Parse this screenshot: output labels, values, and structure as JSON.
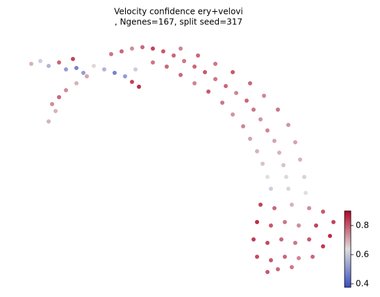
{
  "chart_data": {
    "type": "scatter",
    "title": [
      "Velocity confidence ery+velovi",
      ", Ngenes=167, split seed=317"
    ],
    "xlim": [
      0,
      547
    ],
    "ylim": [
      -18,
      410
    ],
    "x": [
      45,
      58,
      70,
      85,
      95,
      110,
      120,
      135,
      150,
      165,
      180,
      195,
      200,
      190,
      105,
      75,
      85,
      95,
      80,
      70,
      110,
      125,
      160,
      175,
      190,
      205,
      220,
      235,
      250,
      265,
      280,
      295,
      310,
      325,
      340,
      355,
      365,
      375,
      385,
      395,
      402,
      408,
      412,
      415,
      220,
      240,
      260,
      280,
      300,
      320,
      335,
      350,
      360,
      370,
      378,
      385,
      390,
      260,
      285,
      310,
      335,
      360,
      380,
      400,
      415,
      425,
      432,
      438,
      440,
      375,
      395,
      420,
      445,
      465,
      480,
      370,
      390,
      410,
      430,
      455,
      475,
      365,
      385,
      405,
      425,
      445,
      465,
      370,
      390,
      410,
      430,
      450,
      385,
      400,
      420
    ],
    "y": [
      318,
      322,
      315,
      320,
      310,
      312,
      305,
      315,
      310,
      305,
      300,
      310,
      285,
      292,
      325,
      260,
      270,
      280,
      250,
      235,
      290,
      300,
      332,
      336,
      340,
      342,
      340,
      336,
      330,
      322,
      314,
      306,
      296,
      286,
      276,
      265,
      252,
      238,
      222,
      207,
      190,
      172,
      155,
      138,
      320,
      314,
      302,
      290,
      278,
      262,
      245,
      228,
      210,
      192,
      174,
      155,
      138,
      340,
      330,
      318,
      306,
      290,
      272,
      252,
      230,
      205,
      180,
      155,
      132,
      115,
      110,
      115,
      110,
      105,
      90,
      90,
      85,
      90,
      85,
      85,
      70,
      65,
      60,
      65,
      60,
      65,
      55,
      40,
      35,
      40,
      38,
      40,
      18,
      22,
      25
    ],
    "values": [
      0.7,
      0.6,
      0.55,
      0.8,
      0.5,
      0.45,
      0.5,
      0.65,
      0.55,
      0.45,
      0.5,
      0.6,
      0.88,
      0.85,
      0.85,
      0.75,
      0.8,
      0.75,
      0.7,
      0.7,
      0.7,
      0.72,
      0.78,
      0.8,
      0.75,
      0.8,
      0.85,
      0.82,
      0.8,
      0.78,
      0.8,
      0.82,
      0.78,
      0.8,
      0.76,
      0.8,
      0.78,
      0.74,
      0.76,
      0.72,
      0.7,
      0.68,
      0.65,
      0.62,
      0.78,
      0.8,
      0.8,
      0.76,
      0.82,
      0.78,
      0.74,
      0.76,
      0.72,
      0.7,
      0.68,
      0.64,
      0.6,
      0.76,
      0.8,
      0.78,
      0.82,
      0.8,
      0.76,
      0.78,
      0.74,
      0.72,
      0.7,
      0.66,
      0.64,
      0.85,
      0.8,
      0.7,
      0.75,
      0.82,
      0.85,
      0.88,
      0.82,
      0.78,
      0.75,
      0.85,
      0.88,
      0.86,
      0.84,
      0.8,
      0.78,
      0.82,
      0.86,
      0.84,
      0.82,
      0.8,
      0.76,
      0.8,
      0.82,
      0.8,
      0.78
    ],
    "colormap": [
      "#3b4cc0",
      "#dddddd",
      "#b40426"
    ],
    "clim": [
      0.376,
      0.9
    ],
    "cticks": [
      0.4,
      0.6,
      0.8
    ]
  }
}
